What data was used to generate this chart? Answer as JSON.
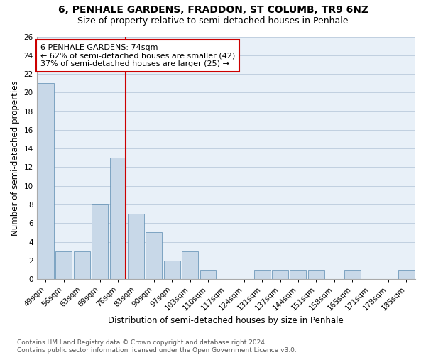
{
  "title": "6, PENHALE GARDENS, FRADDON, ST COLUMB, TR9 6NZ",
  "subtitle": "Size of property relative to semi-detached houses in Penhale",
  "xlabel": "Distribution of semi-detached houses by size in Penhale",
  "ylabel": "Number of semi-detached properties",
  "categories": [
    "49sqm",
    "56sqm",
    "63sqm",
    "69sqm",
    "76sqm",
    "83sqm",
    "90sqm",
    "97sqm",
    "103sqm",
    "110sqm",
    "117sqm",
    "124sqm",
    "131sqm",
    "137sqm",
    "144sqm",
    "151sqm",
    "158sqm",
    "165sqm",
    "171sqm",
    "178sqm",
    "185sqm"
  ],
  "values": [
    21,
    3,
    3,
    8,
    13,
    7,
    5,
    2,
    3,
    1,
    0,
    0,
    1,
    1,
    1,
    1,
    0,
    1,
    0,
    0,
    1
  ],
  "bar_color": "#c8d8e8",
  "bar_edge_color": "#5a8ab0",
  "property_label": "6 PENHALE GARDENS: 74sqm",
  "pct_smaller": 62,
  "n_smaller": 42,
  "pct_larger": 37,
  "n_larger": 25,
  "vline_color": "#cc0000",
  "annotation_box_color": "#cc0000",
  "ylim": [
    0,
    26
  ],
  "yticks": [
    0,
    2,
    4,
    6,
    8,
    10,
    12,
    14,
    16,
    18,
    20,
    22,
    24,
    26
  ],
  "grid_color": "#c0d0e0",
  "bg_color": "#e8f0f8",
  "footer_text": "Contains HM Land Registry data © Crown copyright and database right 2024.\nContains public sector information licensed under the Open Government Licence v3.0.",
  "title_fontsize": 10,
  "subtitle_fontsize": 9,
  "xlabel_fontsize": 8.5,
  "ylabel_fontsize": 8.5,
  "tick_fontsize": 7.5,
  "annotation_fontsize": 8,
  "footer_fontsize": 6.5
}
